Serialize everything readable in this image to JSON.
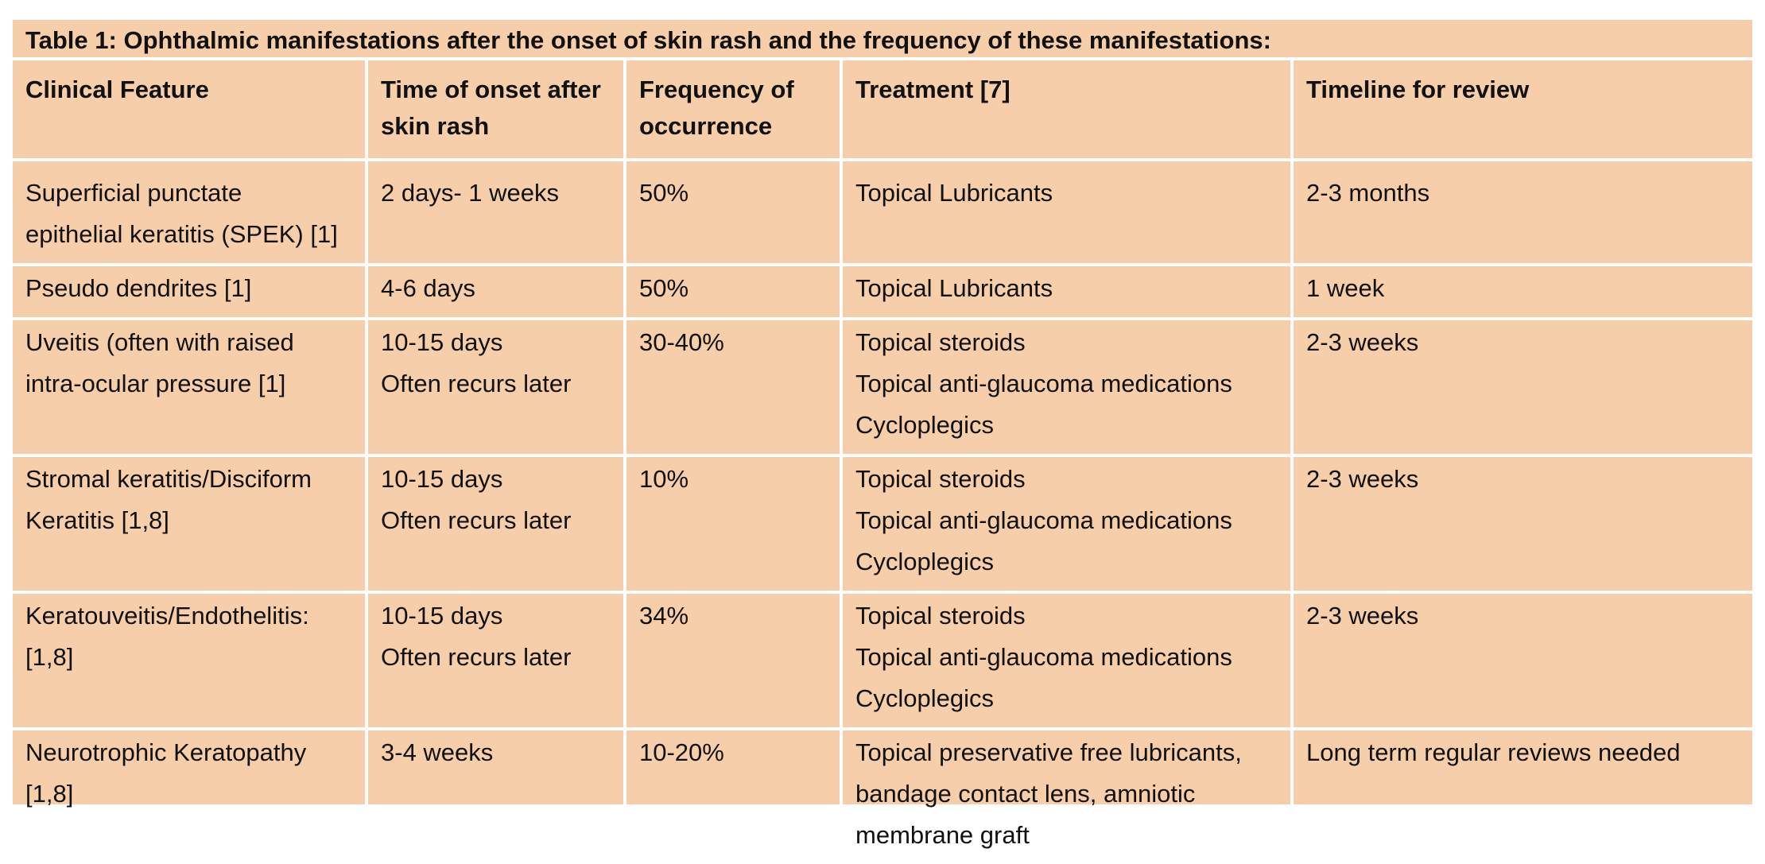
{
  "caption": "Table 1: Ophthalmic manifestations after the onset of skin rash and the frequency of these manifestations:",
  "headers": [
    [
      "Clinical Feature"
    ],
    [
      "Time of onset",
      "after skin rash"
    ],
    [
      "Frequency of",
      "occurrence"
    ],
    [
      "Treatment [7]"
    ],
    [
      "Timeline for review"
    ]
  ],
  "rows": [
    {
      "feature": [
        "Superficial punctate",
        "epithelial keratitis (SPEK) [1]"
      ],
      "onset": [
        "2 days- 1 weeks"
      ],
      "frequency": "50%",
      "treatment": [
        "Topical Lubricants"
      ],
      "review": [
        "2-3 months"
      ]
    },
    {
      "feature": [
        "Pseudo dendrites [1]"
      ],
      "onset": [
        "4-6 days"
      ],
      "frequency": "50%",
      "treatment": [
        "Topical Lubricants"
      ],
      "review": [
        "1 week"
      ]
    },
    {
      "feature": [
        "Uveitis (often with raised",
        "intra-ocular pressure [1]"
      ],
      "onset": [
        "10-15 days",
        "Often recurs later"
      ],
      "frequency": "30-40%",
      "treatment": [
        "Topical steroids",
        "Topical anti-glaucoma medications",
        "Cycloplegics"
      ],
      "review": [
        "2-3 weeks"
      ]
    },
    {
      "feature": [
        "Stromal keratitis/Disciform",
        "Keratitis [1,8]"
      ],
      "onset": [
        "10-15 days",
        "Often recurs later"
      ],
      "frequency": "10%",
      "treatment": [
        "Topical steroids",
        "Topical anti-glaucoma medications",
        "Cycloplegics"
      ],
      "review": [
        "2-3 weeks"
      ]
    },
    {
      "feature": [
        "Keratouveitis/Endothelitis:",
        "[1,8]"
      ],
      "onset": [
        "10-15 days",
        "Often recurs later"
      ],
      "frequency": "34%",
      "treatment": [
        "Topical steroids",
        "Topical anti-glaucoma medications",
        "Cycloplegics"
      ],
      "review": [
        "2-3 weeks"
      ]
    },
    {
      "feature": [
        "Neurotrophic Keratopathy",
        "[1,8]"
      ],
      "onset": [
        "3-4 weeks"
      ],
      "frequency": "10-20%",
      "treatment": [
        "Topical preservative free lubricants,",
        "bandage contact lens, amniotic",
        "membrane graft"
      ],
      "review": [
        "Long term regular reviews needed"
      ]
    }
  ]
}
